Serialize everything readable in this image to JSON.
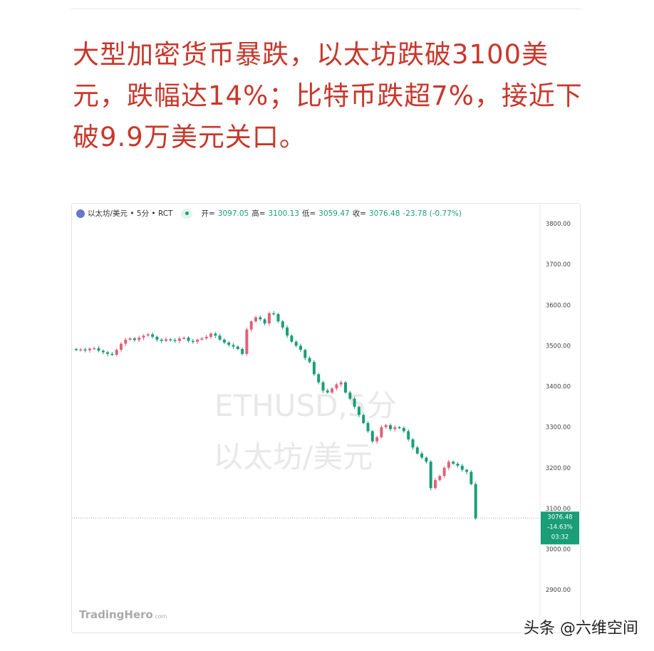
{
  "headline": "大型加密货币暴跌，以太坊跌破3100美元，跌幅达14%；比特币跌超7%，接近下破9.9万美元关口。",
  "chart": {
    "symbol": "以太坊/美元 • 5分 • RCT",
    "open_label": "开=",
    "open": "3097.05",
    "high_label": "高=",
    "high": "3100.13",
    "low_label": "低=",
    "low": "3059.47",
    "close_label": "收=",
    "close": "3076.48",
    "change": "-23.78 (-0.77%)",
    "watermark_line1": "ETHUSD,5分",
    "watermark_line2": "以太坊/美元",
    "price_tag": {
      "price": "3076.48",
      "change": "-14.63%",
      "countdown": "03:32"
    },
    "logo": "TradingHero",
    "logo_suffix": ".com",
    "up_color": "#e0627a",
    "down_color": "#1a9e77"
  },
  "chart_data": {
    "type": "candlestick",
    "y_ticks": [
      "3800.00",
      "3700.00",
      "3600.00",
      "3500.00",
      "3400.00",
      "3300.00",
      "3200.00",
      "3100.00",
      "3000.00",
      "2900.00"
    ],
    "ylim": [
      2880,
      3830
    ],
    "last_price": 3076.48,
    "closes": [
      3490,
      3491,
      3489,
      3493,
      3494,
      3488,
      3484,
      3480,
      3478,
      3490,
      3505,
      3515,
      3518,
      3514,
      3520,
      3525,
      3528,
      3522,
      3515,
      3512,
      3516,
      3514,
      3512,
      3518,
      3520,
      3512,
      3510,
      3515,
      3518,
      3522,
      3530,
      3525,
      3515,
      3508,
      3502,
      3498,
      3492,
      3480,
      3540,
      3560,
      3570,
      3565,
      3555,
      3580,
      3578,
      3560,
      3545,
      3525,
      3510,
      3500,
      3490,
      3470,
      3460,
      3430,
      3410,
      3390,
      3385,
      3395,
      3405,
      3410,
      3385,
      3370,
      3350,
      3330,
      3310,
      3290,
      3265,
      3275,
      3300,
      3305,
      3295,
      3300,
      3298,
      3290,
      3270,
      3250,
      3235,
      3225,
      3215,
      3150,
      3170,
      3180,
      3200,
      3215,
      3210,
      3205,
      3195,
      3190,
      3160,
      3076
    ]
  },
  "footer": "头条 @六维空间"
}
